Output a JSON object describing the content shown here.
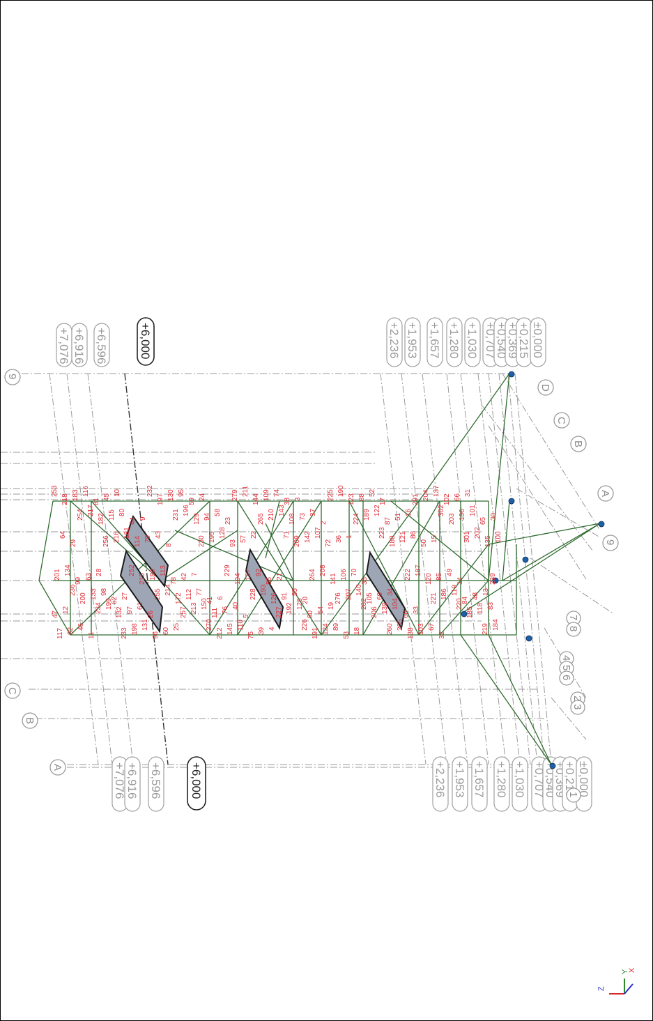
{
  "levels_left": [
    "+7,076",
    "+6,916",
    "+6,596",
    "+6,000"
  ],
  "levels_right": [
    "+2,236",
    "+1,953",
    "+1,657",
    "+1,280",
    "+1,030",
    "+0,707",
    "+0,540",
    "+0,369",
    "+0,215",
    "±0,000"
  ],
  "axis_letters_top": [
    "A",
    "B",
    "C"
  ],
  "axis_letters_right": [
    "A",
    "B",
    "C",
    "D"
  ],
  "axis_numbers": [
    "9",
    "9",
    "4",
    "5",
    "6",
    "7",
    "8",
    "2",
    "3",
    "1"
  ],
  "node_labels": [
    "253",
    "254",
    "256",
    "252",
    "255",
    "257",
    "270",
    "279",
    "265",
    "71",
    "264",
    "276",
    "282",
    "260",
    "291",
    "302",
    "301",
    "239",
    "236",
    "234",
    "233",
    "232",
    "231",
    "230",
    "229",
    "228",
    "227",
    "226",
    "225",
    "224",
    "223",
    "222",
    "221",
    "220",
    "219",
    "218",
    "217",
    "216",
    "215",
    "214",
    "213",
    "212",
    "211",
    "210",
    "209",
    "208",
    "207",
    "206",
    "205",
    "204",
    "203",
    "202",
    "201",
    "200",
    "199",
    "198",
    "197",
    "196",
    "195",
    "194",
    "193",
    "192",
    "191",
    "190",
    "189",
    "188",
    "187",
    "186",
    "185",
    "184",
    "183",
    "182",
    "181",
    "180",
    "172",
    "150",
    "145",
    "144",
    "143",
    "142",
    "141",
    "140",
    "139",
    "138",
    "137",
    "136",
    "135",
    "134",
    "133",
    "132",
    "131",
    "130",
    "129",
    "128",
    "127",
    "126",
    "125",
    "124",
    "123",
    "122",
    "121",
    "120",
    "119",
    "118",
    "117",
    "116",
    "115",
    "114",
    "113",
    "112",
    "111",
    "110",
    "109",
    "108",
    "107",
    "106",
    "105",
    "104",
    "103",
    "102",
    "101",
    "100",
    "99",
    "98",
    "97",
    "96",
    "95",
    "94",
    "93",
    "92",
    "91",
    "90",
    "89",
    "88",
    "87",
    "86",
    "85",
    "84",
    "83",
    "82",
    "81",
    "80",
    "79",
    "78",
    "77",
    "76",
    "75",
    "74",
    "73",
    "72",
    "70",
    "69",
    "68",
    "67",
    "66",
    "65",
    "64",
    "63",
    "62",
    "61",
    "60",
    "59",
    "58",
    "57",
    "56",
    "55",
    "54",
    "53",
    "52",
    "51",
    "50",
    "49",
    "48",
    "47",
    "46",
    "45",
    "44",
    "43",
    "42",
    "41",
    "40",
    "39",
    "38",
    "37",
    "36",
    "35",
    "34",
    "33",
    "32",
    "31",
    "30",
    "29",
    "28",
    "27",
    "26",
    "25",
    "24",
    "23",
    "22",
    "21",
    "20",
    "19",
    "18",
    "17",
    "16",
    "15",
    "14",
    "13",
    "12",
    "11",
    "10",
    "9",
    "8",
    "7",
    "6",
    "5",
    "4",
    "3",
    "2",
    "1"
  ],
  "coord_axes": {
    "x": "X",
    "y": "Y",
    "z": "Z"
  },
  "colors": {
    "member": "#2f6b2f",
    "plate": "#9ea6b6",
    "node_label": "#e0303a",
    "gridline": "#9a9a9a",
    "support": "#1f5fa8"
  }
}
